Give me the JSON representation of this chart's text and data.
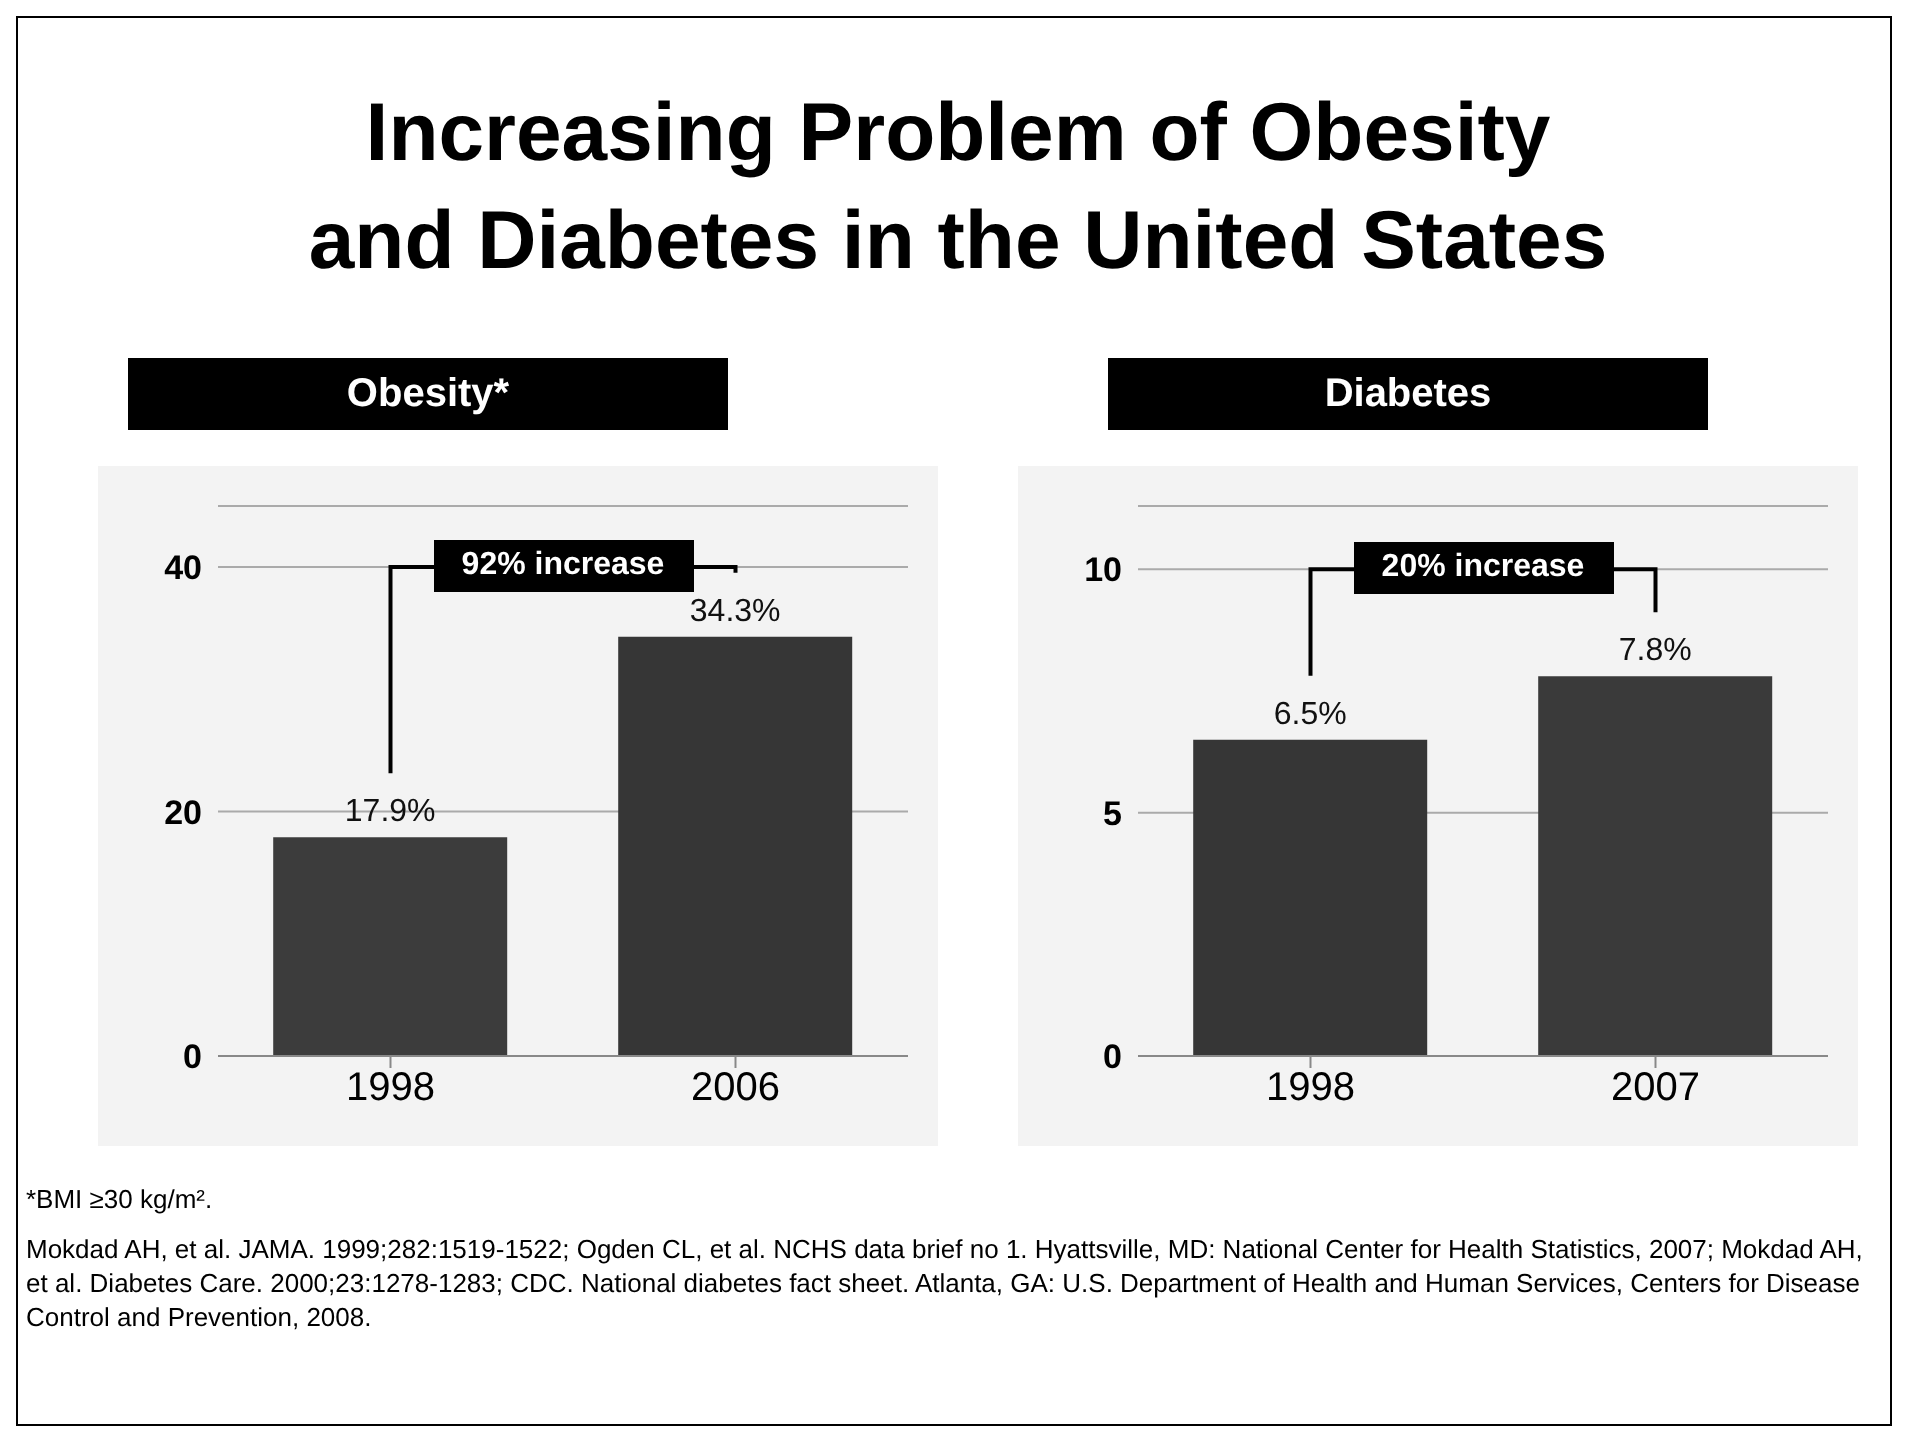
{
  "chart_data": [
    {
      "type": "bar",
      "title": "Increasing Problem of Obesity and Diabetes in the United States",
      "subtitle": "Obesity*",
      "categories": [
        "1998",
        "2006"
      ],
      "values": [
        17.9,
        34.3
      ],
      "colors": [
        "#3c3c3c",
        "#363636"
      ],
      "value_labels": [
        "17.9%",
        "34.3%"
      ],
      "ylim": [
        0,
        45
      ],
      "yticks": [
        0,
        20,
        40
      ],
      "grid": "y",
      "annotations": [
        "92% increase",
        "*BMI ≥30 kg/m².",
        "Mokdad AH, et al. JAMA. 1999;282:1519-1522; Ogden CL, et al. NCHS data brief no 1. Hyattsville, MD: National Center for Health Statistics, 2007; Mokdad AH, et al. Diabetes Care. 2000;23:1278-1283; CDC. National diabetes fact sheet. Atlanta, GA: U.S. Department of Health and Human Services, Centers for Disease Control and Prevention, 2008."
      ]
    },
    {
      "type": "bar",
      "subtitle": "Diabetes",
      "categories": [
        "1998",
        "2007"
      ],
      "values": [
        6.5,
        7.8
      ],
      "colors": [
        "#363636",
        "#3a3a3a"
      ],
      "value_labels": [
        "6.5%",
        "7.8%"
      ],
      "ylim": [
        0,
        11.3
      ],
      "yticks": [
        0,
        5,
        10
      ],
      "grid": "y",
      "annotations": [
        "20% increase"
      ]
    }
  ]
}
